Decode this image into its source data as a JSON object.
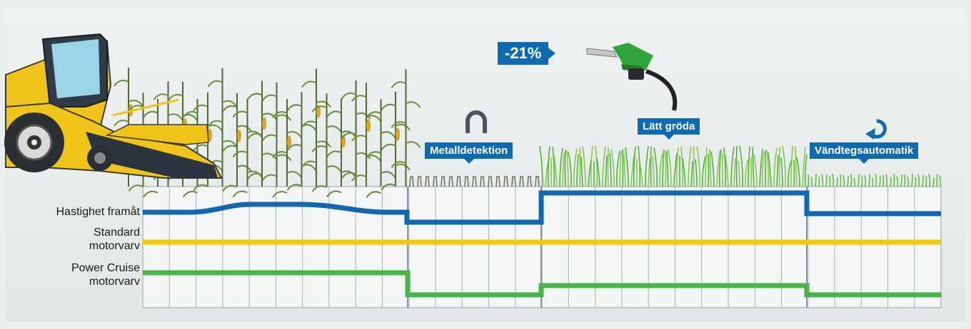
{
  "savings": "-21%",
  "features": {
    "metal_detection": "Metalldetektion",
    "light_crop": "Lätt gröda",
    "headland": "Vändtegsautomatik"
  },
  "rows": {
    "forward_speed": "Hastighet framåt",
    "standard_rpm_1": "Standard",
    "standard_rpm_2": "motorvarv",
    "power_cruise_1": "Power Cruise",
    "power_cruise_2": "motorvarv"
  },
  "colors": {
    "label_blue": "#0e6ab1",
    "speed_line": "#1167b1",
    "standard_line": "#f5c800",
    "power_cruise_line": "#48b548",
    "machine_yellow": "#f0c419",
    "fuel_nozzle_green": "#2fa53a"
  },
  "icons": [
    "harvester-icon",
    "fuel-nozzle-icon",
    "magnet-icon",
    "turn-arrow-icon",
    "corn-field-icon",
    "grass-icon"
  ]
}
